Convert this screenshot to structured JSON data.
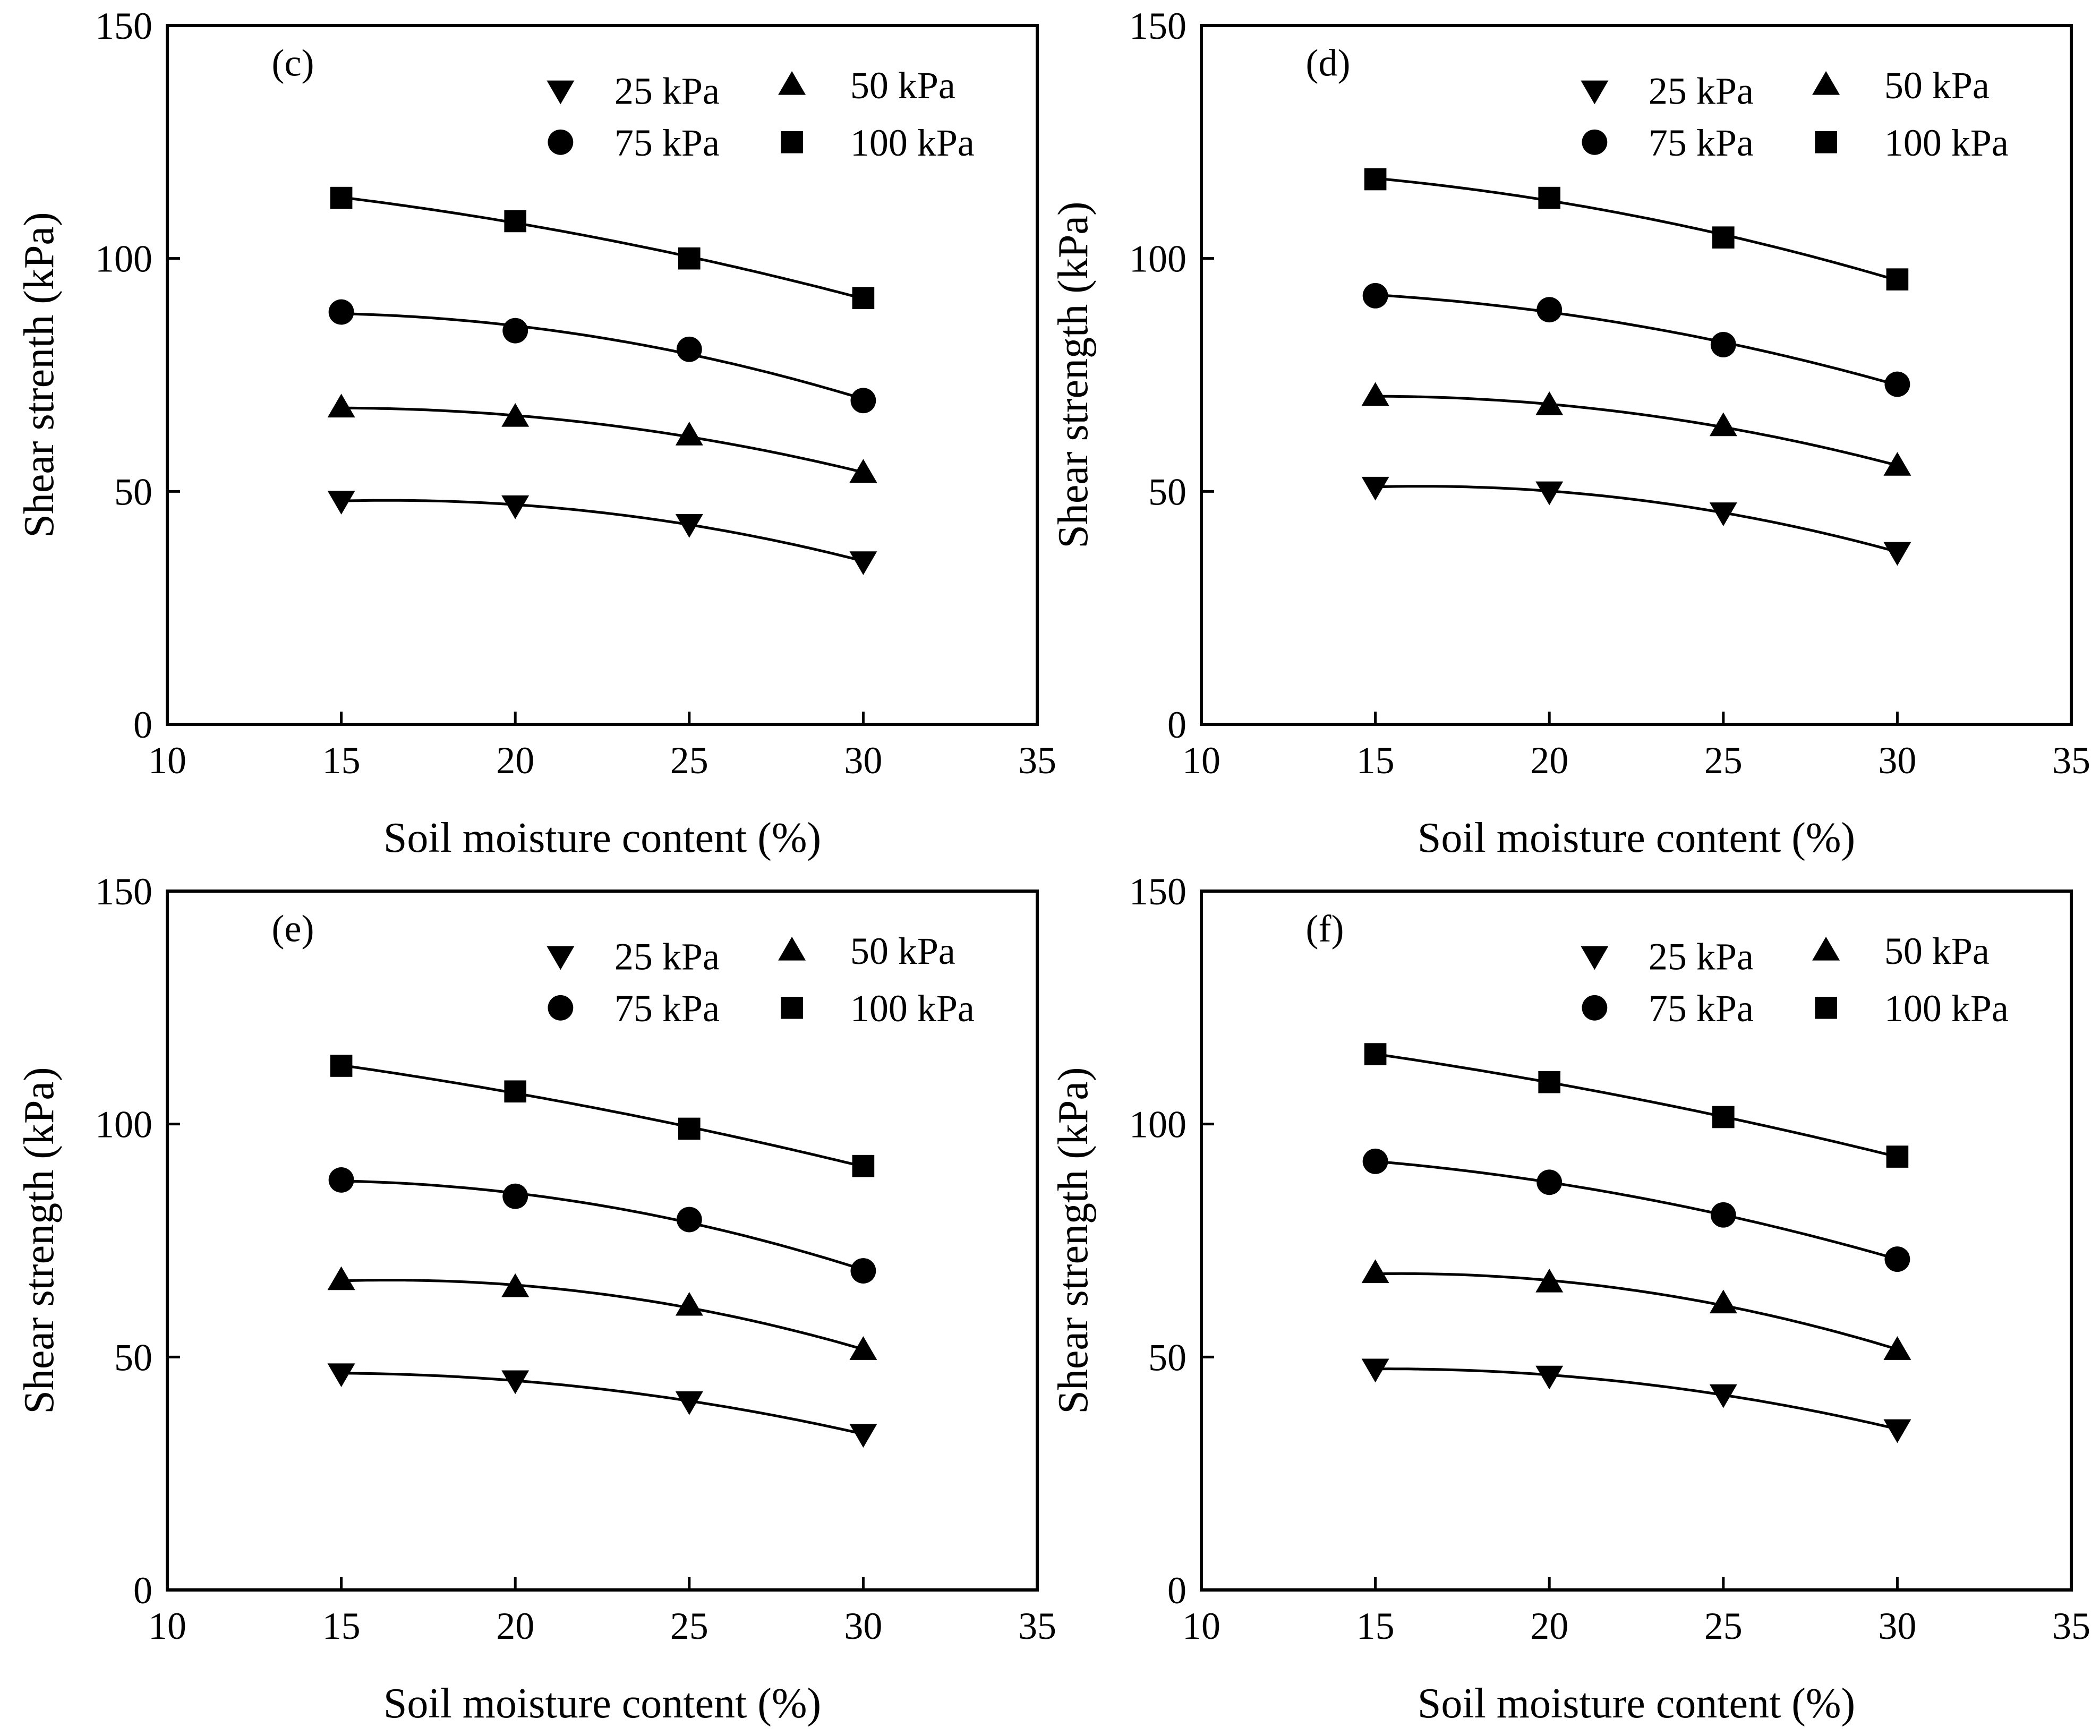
{
  "chart_data": [
    {
      "type": "scatter",
      "panel_label": "(c)",
      "xlabel": "Soil moisture content (%)",
      "ylabel": "Shear strenth (kPa)",
      "xlim": [
        10,
        35
      ],
      "ylim": [
        0,
        150
      ],
      "xticks": [
        "10",
        "15",
        "20",
        "25",
        "30",
        "35"
      ],
      "yticks": [
        "0",
        "50",
        "100",
        "150"
      ],
      "x": [
        15,
        20,
        25,
        30
      ],
      "legend_position": "top-right",
      "series": [
        {
          "name": "25 kPa",
          "marker": "triangle-down",
          "values": [
            48,
            47,
            43,
            35
          ]
        },
        {
          "name": "50 kPa",
          "marker": "triangle-up",
          "values": [
            68,
            66,
            62,
            54
          ]
        },
        {
          "name": "75 kPa",
          "marker": "circle",
          "values": [
            88.5,
            84.5,
            80.5,
            69.5
          ]
        },
        {
          "name": "100 kPa",
          "marker": "square",
          "values": [
            113,
            108,
            100,
            91.5
          ]
        }
      ]
    },
    {
      "type": "scatter",
      "panel_label": "(d)",
      "xlabel": "Soil moisture content (%)",
      "ylabel": "Shear strength (kPa)",
      "xlim": [
        10,
        35
      ],
      "ylim": [
        0,
        150
      ],
      "xticks": [
        "10",
        "15",
        "20",
        "25",
        "30",
        "35"
      ],
      "yticks": [
        "0",
        "50",
        "100",
        "150"
      ],
      "x": [
        15,
        20,
        25,
        30
      ],
      "legend_position": "top-right",
      "series": [
        {
          "name": "25 kPa",
          "marker": "triangle-down",
          "values": [
            51,
            50,
            45.5,
            37
          ]
        },
        {
          "name": "50 kPa",
          "marker": "triangle-up",
          "values": [
            70.5,
            68.5,
            64,
            55.5
          ]
        },
        {
          "name": "75 kPa",
          "marker": "circle",
          "values": [
            92,
            89,
            81.5,
            73
          ]
        },
        {
          "name": "100 kPa",
          "marker": "square",
          "values": [
            117,
            113,
            104.5,
            95.5
          ]
        }
      ]
    },
    {
      "type": "scatter",
      "panel_label": "(e)",
      "xlabel": "Soil moisture content (%)",
      "ylabel": "Shear strength (kPa)",
      "xlim": [
        10,
        35
      ],
      "ylim": [
        0,
        150
      ],
      "xticks": [
        "10",
        "15",
        "20",
        "25",
        "30",
        "35"
      ],
      "yticks": [
        "0",
        "50",
        "100",
        "150"
      ],
      "x": [
        15,
        20,
        25,
        30
      ],
      "legend_position": "top-right",
      "series": [
        {
          "name": "25 kPa",
          "marker": "triangle-down",
          "values": [
            46.5,
            45,
            40.5,
            33.5
          ]
        },
        {
          "name": "50 kPa",
          "marker": "triangle-up",
          "values": [
            66.5,
            65,
            61,
            51.5
          ]
        },
        {
          "name": "75 kPa",
          "marker": "circle",
          "values": [
            88,
            84.5,
            79.5,
            68.5
          ]
        },
        {
          "name": "100 kPa",
          "marker": "square",
          "values": [
            112.5,
            107,
            99,
            91
          ]
        }
      ]
    },
    {
      "type": "scatter",
      "panel_label": "(f)",
      "xlabel": "Soil moisture content (%)",
      "ylabel": "Shear strength (kPa)",
      "xlim": [
        10,
        35
      ],
      "ylim": [
        0,
        150
      ],
      "xticks": [
        "10",
        "15",
        "20",
        "25",
        "30",
        "35"
      ],
      "yticks": [
        "0",
        "50",
        "100",
        "150"
      ],
      "x": [
        15,
        20,
        25,
        30
      ],
      "legend_position": "top-right",
      "series": [
        {
          "name": "25 kPa",
          "marker": "triangle-down",
          "values": [
            47.5,
            46,
            42,
            34.5
          ]
        },
        {
          "name": "50 kPa",
          "marker": "triangle-up",
          "values": [
            68,
            66,
            61.5,
            51.5
          ]
        },
        {
          "name": "75 kPa",
          "marker": "circle",
          "values": [
            92,
            87.5,
            80.5,
            71
          ]
        },
        {
          "name": "100 kPa",
          "marker": "square",
          "values": [
            115,
            109,
            101.5,
            93
          ]
        }
      ]
    }
  ]
}
